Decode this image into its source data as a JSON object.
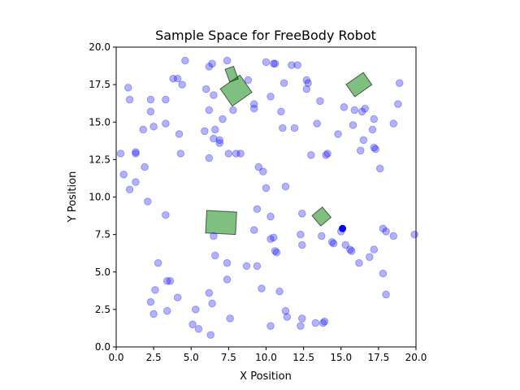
{
  "chart_data": {
    "type": "scatter",
    "title": "Sample Space for FreeBody Robot",
    "xlabel": "X Position",
    "ylabel": "Y Position",
    "xlim": [
      0,
      20
    ],
    "ylim": [
      0,
      20
    ],
    "xticks": [
      "0.0",
      "2.5",
      "5.0",
      "7.5",
      "10.0",
      "12.5",
      "15.0",
      "17.5",
      "20.0"
    ],
    "yticks": [
      "0.0",
      "2.5",
      "5.0",
      "7.5",
      "10.0",
      "12.5",
      "15.0",
      "17.5",
      "20.0"
    ],
    "grid": false,
    "colors": {
      "samples": "#0000ff",
      "obstacles": "#008000",
      "target": "#0000ff"
    },
    "samples": [
      [
        0.3,
        12.9
      ],
      [
        0.5,
        11.5
      ],
      [
        0.8,
        17.3
      ],
      [
        0.9,
        16.5
      ],
      [
        0.9,
        10.5
      ],
      [
        1.3,
        13.0
      ],
      [
        1.3,
        12.9
      ],
      [
        1.3,
        11.0
      ],
      [
        1.8,
        14.5
      ],
      [
        1.9,
        12.0
      ],
      [
        2.1,
        9.7
      ],
      [
        2.3,
        16.5
      ],
      [
        2.3,
        15.7
      ],
      [
        2.5,
        14.7
      ],
      [
        2.8,
        5.6
      ],
      [
        2.6,
        3.8
      ],
      [
        2.3,
        3.0
      ],
      [
        2.5,
        2.2
      ],
      [
        3.3,
        16.5
      ],
      [
        3.3,
        14.9
      ],
      [
        3.3,
        8.8
      ],
      [
        3.4,
        4.4
      ],
      [
        3.6,
        4.4
      ],
      [
        3.4,
        2.4
      ],
      [
        3.8,
        17.9
      ],
      [
        4.1,
        17.9
      ],
      [
        4.2,
        14.2
      ],
      [
        4.3,
        12.9
      ],
      [
        4.4,
        17.5
      ],
      [
        4.6,
        19.1
      ],
      [
        4.1,
        3.3
      ],
      [
        5.1,
        1.5
      ],
      [
        5.3,
        2.5
      ],
      [
        5.5,
        1.2
      ],
      [
        5.9,
        14.4
      ],
      [
        6.0,
        17.2
      ],
      [
        6.2,
        15.8
      ],
      [
        6.2,
        18.7
      ],
      [
        6.4,
        18.9
      ],
      [
        6.5,
        16.8
      ],
      [
        6.6,
        14.5
      ],
      [
        6.5,
        13.9
      ],
      [
        6.9,
        13.6
      ],
      [
        6.9,
        13.8
      ],
      [
        7.1,
        15.2
      ],
      [
        6.2,
        12.6
      ],
      [
        6.5,
        7.4
      ],
      [
        6.6,
        6.1
      ],
      [
        6.2,
        3.6
      ],
      [
        6.4,
        2.9
      ],
      [
        6.3,
        0.8
      ],
      [
        7.4,
        19.1
      ],
      [
        7.5,
        12.9
      ],
      [
        7.8,
        15.8
      ],
      [
        8.0,
        12.9
      ],
      [
        8.3,
        12.9
      ],
      [
        8.8,
        17.8
      ],
      [
        7.4,
        5.6
      ],
      [
        7.4,
        4.5
      ],
      [
        7.6,
        1.9
      ],
      [
        8.7,
        5.4
      ],
      [
        9.2,
        16.2
      ],
      [
        9.2,
        15.9
      ],
      [
        9.5,
        12.0
      ],
      [
        9.8,
        11.7
      ],
      [
        9.2,
        7.8
      ],
      [
        9.4,
        9.2
      ],
      [
        9.4,
        5.4
      ],
      [
        9.7,
        3.9
      ],
      [
        10.0,
        19.0
      ],
      [
        10.0,
        10.6
      ],
      [
        10.3,
        16.7
      ],
      [
        10.5,
        18.9
      ],
      [
        10.6,
        18.9
      ],
      [
        10.3,
        8.7
      ],
      [
        10.3,
        7.2
      ],
      [
        10.5,
        7.3
      ],
      [
        10.6,
        6.4
      ],
      [
        10.7,
        6.3
      ],
      [
        10.3,
        1.4
      ],
      [
        11.0,
        15.7
      ],
      [
        11.1,
        14.6
      ],
      [
        11.2,
        17.6
      ],
      [
        11.3,
        10.7
      ],
      [
        10.9,
        3.7
      ],
      [
        11.3,
        2.4
      ],
      [
        11.4,
        2.0
      ],
      [
        11.7,
        18.8
      ],
      [
        12.1,
        18.8
      ],
      [
        11.9,
        14.6
      ],
      [
        12.3,
        7.5
      ],
      [
        12.4,
        8.9
      ],
      [
        12.4,
        6.8
      ],
      [
        12.4,
        1.9
      ],
      [
        12.3,
        1.4
      ],
      [
        12.7,
        17.2
      ],
      [
        12.7,
        17.8
      ],
      [
        12.8,
        17.6
      ],
      [
        13.0,
        12.8
      ],
      [
        13.3,
        1.6
      ],
      [
        13.4,
        14.9
      ],
      [
        13.6,
        16.4
      ],
      [
        13.7,
        7.4
      ],
      [
        13.8,
        1.6
      ],
      [
        13.9,
        1.7
      ],
      [
        14.0,
        12.8
      ],
      [
        14.1,
        12.9
      ],
      [
        14.4,
        7.0
      ],
      [
        14.5,
        6.9
      ],
      [
        14.8,
        14.2
      ],
      [
        15.0,
        7.7
      ],
      [
        15.2,
        16.0
      ],
      [
        15.3,
        6.8
      ],
      [
        15.6,
        6.5
      ],
      [
        15.7,
        6.4
      ],
      [
        15.8,
        14.8
      ],
      [
        15.9,
        15.8
      ],
      [
        16.2,
        5.6
      ],
      [
        16.3,
        13.1
      ],
      [
        16.4,
        15.7
      ],
      [
        16.5,
        13.8
      ],
      [
        16.6,
        15.9
      ],
      [
        16.9,
        6.0
      ],
      [
        17.1,
        14.5
      ],
      [
        17.2,
        15.2
      ],
      [
        17.2,
        13.3
      ],
      [
        17.3,
        13.2
      ],
      [
        17.2,
        6.5
      ],
      [
        17.6,
        11.9
      ],
      [
        17.8,
        4.9
      ],
      [
        17.8,
        7.9
      ],
      [
        18.0,
        3.5
      ],
      [
        18.0,
        7.7
      ],
      [
        18.5,
        14.9
      ],
      [
        18.5,
        7.4
      ],
      [
        18.8,
        16.2
      ],
      [
        18.9,
        17.6
      ],
      [
        19.9,
        7.5
      ]
    ],
    "target": [
      15.1,
      7.9
    ],
    "obstacles": [
      {
        "cx": 16.2,
        "cy": 17.5,
        "w": 1.4,
        "h": 1.0,
        "angle": 35
      },
      {
        "cx": 8.0,
        "cy": 17.1,
        "w": 1.6,
        "h": 1.4,
        "angle": 35
      },
      {
        "cx": 7.7,
        "cy": 18.2,
        "w": 0.6,
        "h": 0.9,
        "angle": 20
      },
      {
        "cx": 7.0,
        "cy": 8.3,
        "w": 2.0,
        "h": 1.5,
        "angle": -3
      },
      {
        "cx": 13.7,
        "cy": 8.7,
        "w": 0.9,
        "h": 0.9,
        "angle": 40
      }
    ]
  }
}
